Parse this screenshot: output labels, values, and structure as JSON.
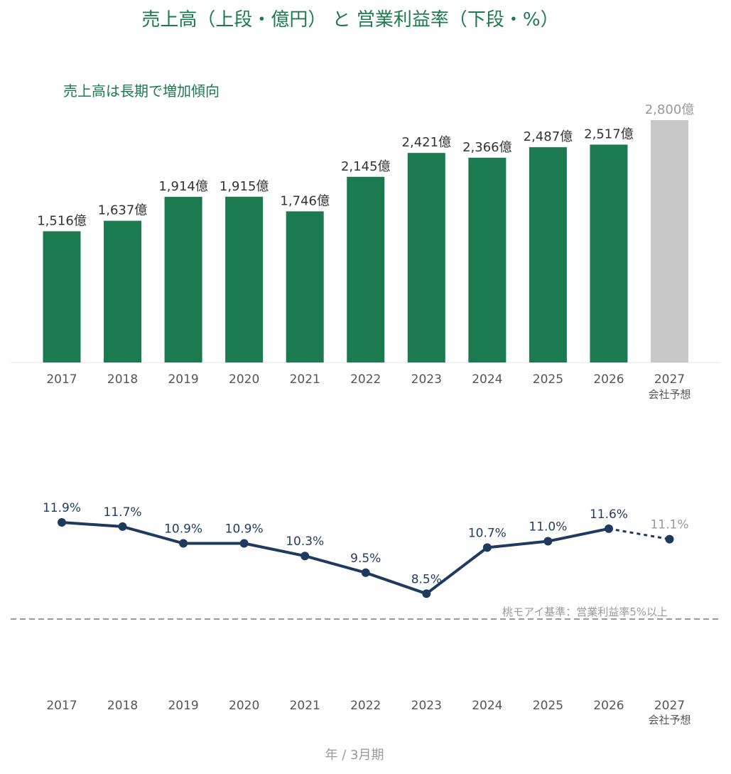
{
  "page": {
    "title": "売上高（上段・億円） と 営業利益率（下段・%）",
    "annotation": "売上高は長期で増加傾向",
    "threshold_label": "桃モアイ基準：営業利益率5%以上",
    "axis_caption": "年 / 3月期",
    "forecast_note": "会社予想"
  },
  "colors": {
    "bar": "#1b7a4f",
    "bar_forecast": "#c8c8c8",
    "line": "#1f3a5f",
    "threshold": "#9a9a9a",
    "title": "#1b7a4f"
  },
  "chart_data": [
    {
      "type": "bar",
      "title": "売上高（上段・億円）",
      "categories": [
        "2017",
        "2018",
        "2019",
        "2020",
        "2021",
        "2022",
        "2023",
        "2024",
        "2025",
        "2026",
        "2027"
      ],
      "values": [
        1516,
        1637,
        1914,
        1915,
        1746,
        2145,
        2421,
        2366,
        2487,
        2517,
        2800
      ],
      "labels": [
        "1,516億",
        "1,637億",
        "1,914億",
        "1,915億",
        "1,746億",
        "2,145億",
        "2,421億",
        "2,366億",
        "2,487億",
        "2,517億",
        "2,800億"
      ],
      "forecast": [
        false,
        false,
        false,
        false,
        false,
        false,
        false,
        false,
        false,
        false,
        true
      ],
      "unit": "億円",
      "ylim": [
        0,
        2800
      ],
      "grid": false,
      "annotation": "売上高は長期で増加傾向"
    },
    {
      "type": "line",
      "title": "営業利益率（下段・%）",
      "categories": [
        "2017",
        "2018",
        "2019",
        "2020",
        "2021",
        "2022",
        "2023",
        "2024",
        "2025",
        "2026",
        "2027"
      ],
      "values": [
        11.9,
        11.7,
        10.9,
        10.9,
        10.3,
        9.5,
        8.5,
        10.7,
        11.0,
        11.6,
        11.1
      ],
      "labels": [
        "11.9%",
        "11.7%",
        "10.9%",
        "10.9%",
        "10.3%",
        "9.5%",
        "8.5%",
        "10.7%",
        "11.0%",
        "11.6%",
        "11.1%"
      ],
      "forecast": [
        false,
        false,
        false,
        false,
        false,
        false,
        false,
        false,
        false,
        false,
        true
      ],
      "unit": "%",
      "threshold": {
        "value": 5,
        "label": "桃モアイ基準：営業利益率5%以上"
      },
      "grid": false
    }
  ]
}
